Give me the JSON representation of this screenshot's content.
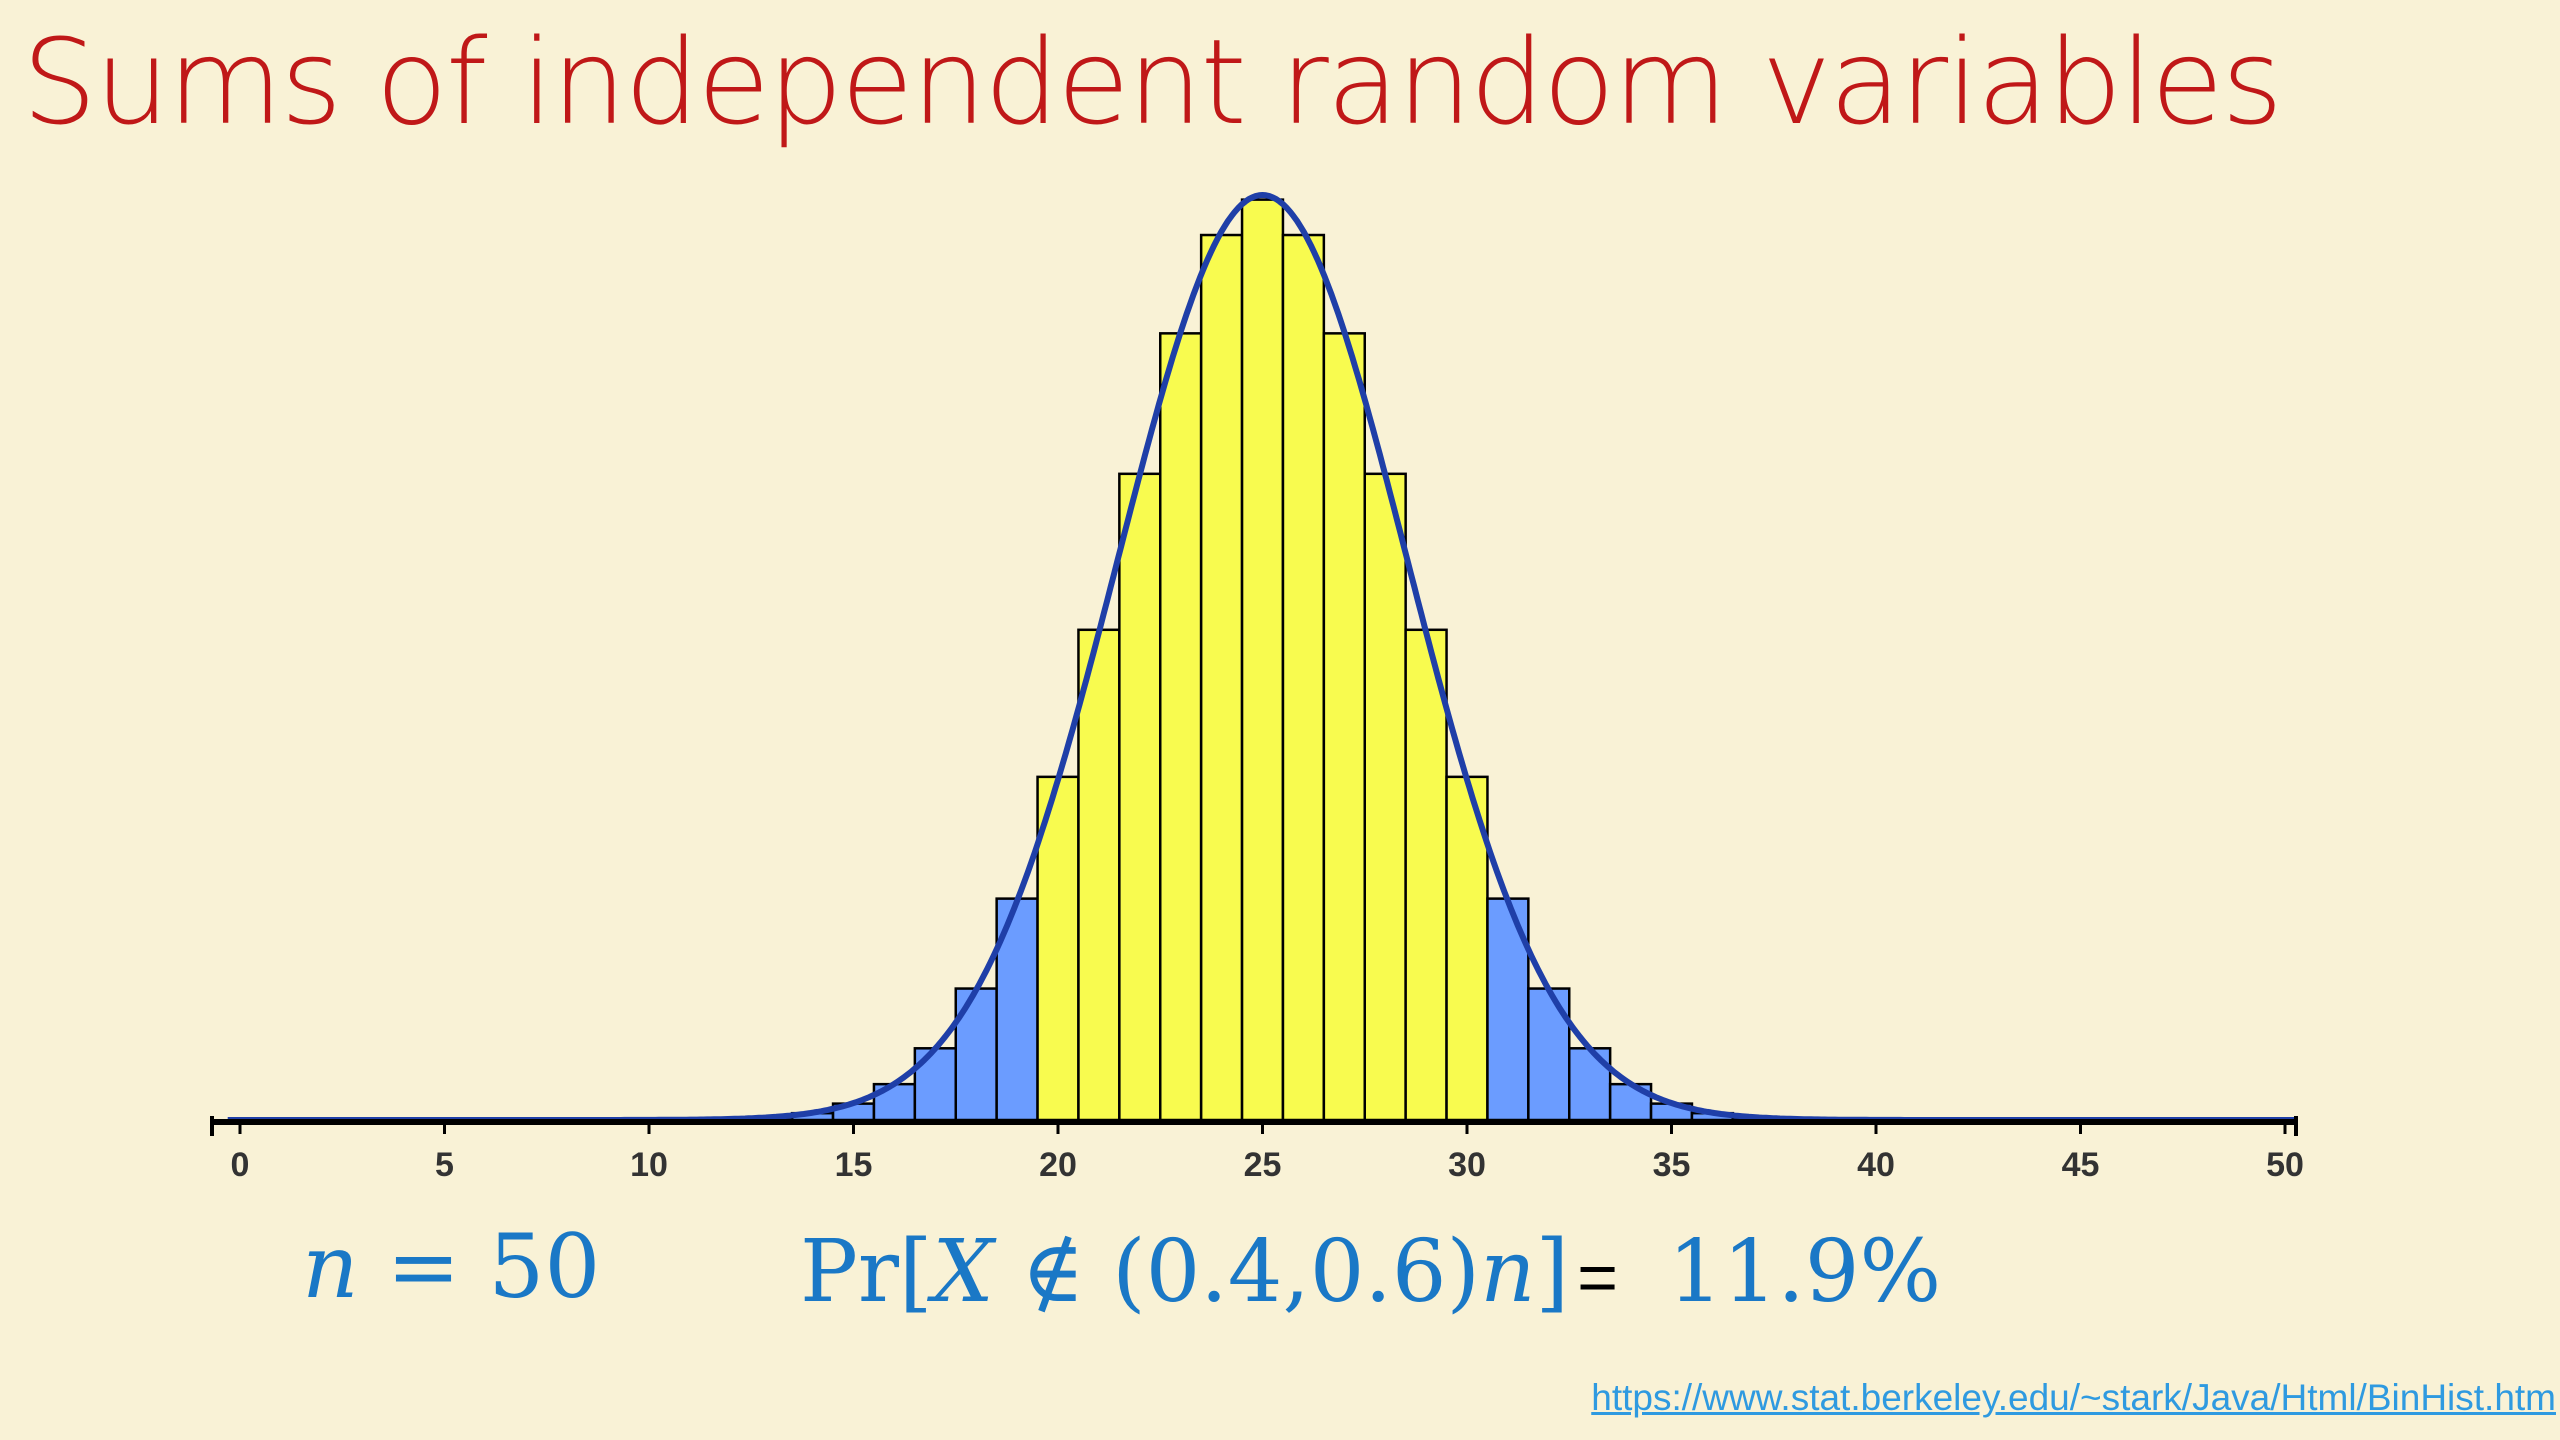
{
  "slide": {
    "title": "Sums of independent random variables",
    "n_formula": {
      "variable": "n",
      "equals": "=",
      "value": "50"
    },
    "prob_formula": {
      "prefix": "Pr[",
      "variable": "X",
      "not_in": "∉",
      "interval": "(0.4,0.6)",
      "n": "n",
      "suffix": "]",
      "equals": "=",
      "value": "11.9%"
    },
    "source_link": "https://www.stat.berkeley.edu/~stark/Java/Html/BinHist.htm"
  },
  "colors": {
    "title": "#c01818",
    "formula": "#1a78c6",
    "bar_inside": "#f8fb4f",
    "bar_outside": "#6b9cff",
    "curve": "#1f3fa8",
    "link": "#2f9ae0"
  },
  "chart_data": {
    "type": "bar",
    "subtype": "histogram with normal curve overlay",
    "distribution": "Binomial(50, 0.5)",
    "n": 50,
    "p": 0.5,
    "xlim": [
      0,
      50
    ],
    "x_ticks": [
      0,
      5,
      10,
      15,
      20,
      25,
      30,
      35,
      40,
      45,
      50
    ],
    "highlight_range": [
      20,
      30
    ],
    "highlight_label": "yellow bars: 20–30, blue bars: outside",
    "curve": {
      "type": "normal",
      "mean": 25,
      "sd": 3.5355
    },
    "grid": false,
    "legend": "none"
  }
}
